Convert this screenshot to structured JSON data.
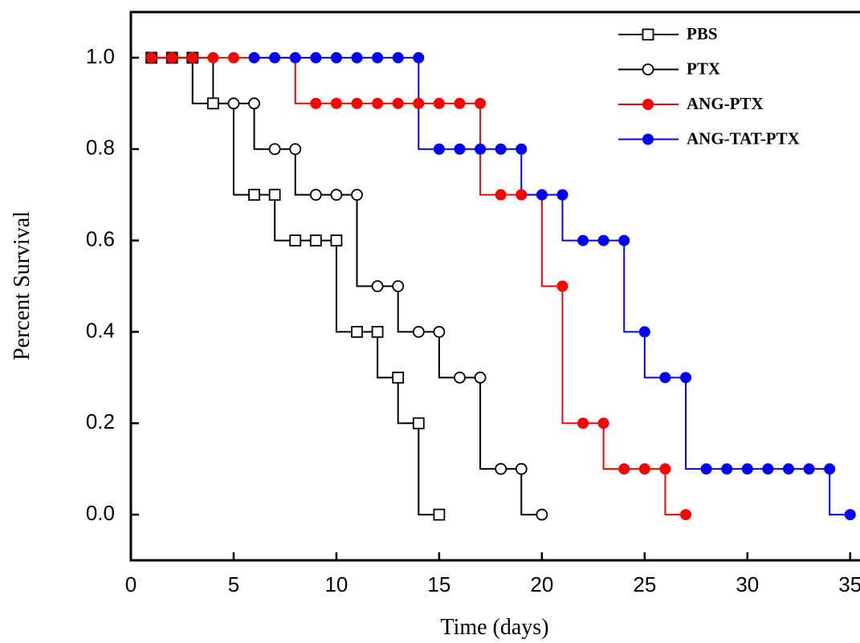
{
  "chart_data": {
    "type": "survival",
    "x_label": "Time (days)",
    "y_label": "Percent Survival",
    "xlim": [
      0,
      35.4
    ],
    "ylim": [
      -0.1,
      1.1
    ],
    "xticks": [
      0,
      5,
      10,
      15,
      20,
      25,
      30,
      35
    ],
    "yticks": [
      {
        "value": 0,
        "label": "0.0"
      },
      0.2,
      0.4,
      0.6,
      0.8,
      {
        "value": 1,
        "label": "1.0"
      }
    ],
    "legend": "upper right",
    "series": [
      {
        "name": "PBS",
        "color": "#000000",
        "marker": "open-square",
        "x": [
          1,
          2,
          3,
          4,
          6,
          7,
          8,
          9,
          10,
          11,
          12,
          13,
          14,
          15
        ],
        "values": [
          1,
          1,
          1,
          0.9,
          0.7,
          0.7,
          0.6,
          0.6,
          0.6,
          0.4,
          0.4,
          0.3,
          0.2,
          0
        ]
      },
      {
        "name": "PTX",
        "color": "#000000",
        "marker": "open-circle",
        "x": [
          1,
          2,
          3,
          5,
          6,
          7,
          8,
          9,
          10,
          11,
          12,
          13,
          14,
          15,
          16,
          17,
          18,
          19,
          20
        ],
        "values": [
          1,
          1,
          1,
          0.9,
          0.9,
          0.8,
          0.8,
          0.7,
          0.7,
          0.7,
          0.5,
          0.5,
          0.4,
          0.4,
          0.3,
          0.3,
          0.1,
          0.1,
          0
        ]
      },
      {
        "name": "ANG-PTX",
        "color": "#ff0000",
        "marker": "filled-circle",
        "x": [
          1,
          2,
          3,
          4,
          5,
          9,
          10,
          11,
          12,
          13,
          14,
          15,
          16,
          17,
          18,
          19,
          21,
          22,
          23,
          24,
          25,
          26,
          27
        ],
        "values": [
          1,
          1,
          1,
          1,
          1,
          0.9,
          0.9,
          0.9,
          0.9,
          0.9,
          0.9,
          0.9,
          0.9,
          0.9,
          0.7,
          0.7,
          0.5,
          0.2,
          0.2,
          0.1,
          0.1,
          0.1,
          0
        ]
      },
      {
        "name": "ANG-TAT-PTX",
        "color": "#0000ff",
        "marker": "filled-circle",
        "x": [
          6,
          7,
          8,
          9,
          10,
          11,
          12,
          13,
          14,
          15,
          16,
          17,
          18,
          19,
          20,
          21,
          22,
          23,
          24,
          25,
          26,
          27,
          28,
          29,
          30,
          31,
          32,
          33,
          34,
          35
        ],
        "values": [
          1,
          1,
          1,
          1,
          1,
          1,
          1,
          1,
          1,
          0.8,
          0.8,
          0.8,
          0.8,
          0.8,
          0.7,
          0.7,
          0.6,
          0.6,
          0.6,
          0.4,
          0.3,
          0.3,
          0.1,
          0.1,
          0.1,
          0.1,
          0.1,
          0.1,
          0.1,
          0
        ]
      }
    ]
  }
}
